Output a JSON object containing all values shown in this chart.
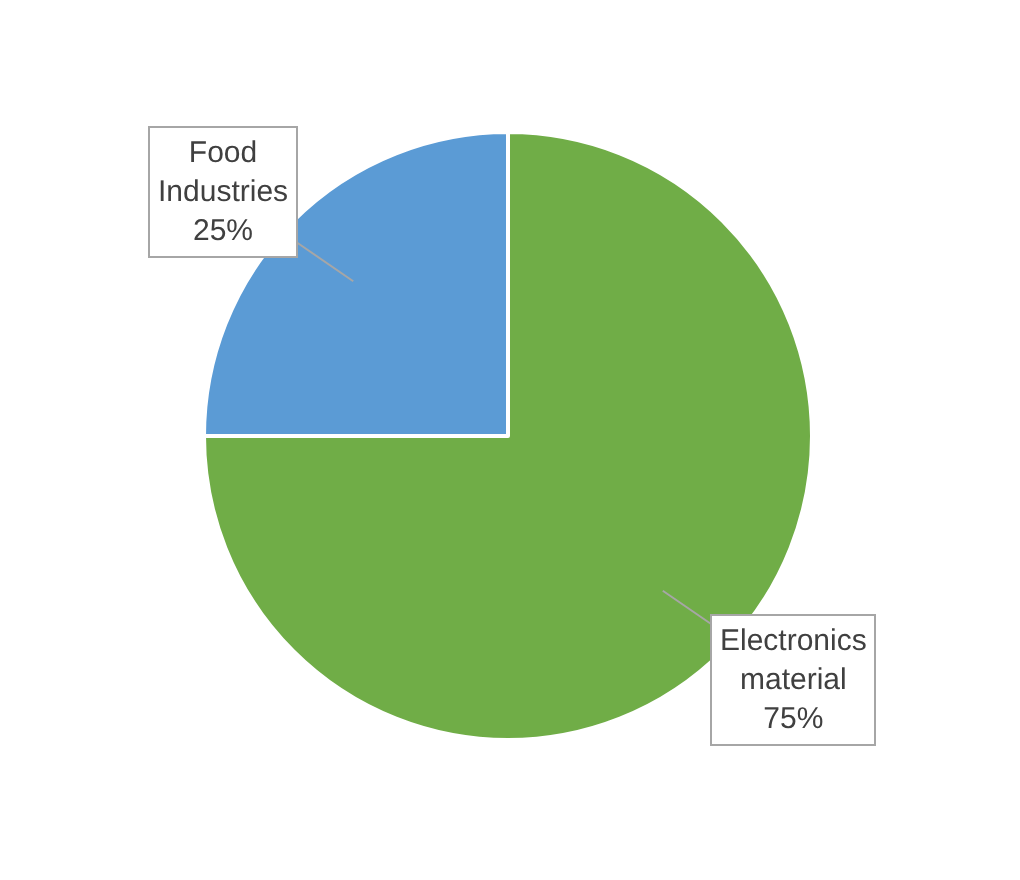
{
  "chart_data": {
    "type": "pie",
    "categories": [
      "Food Industries",
      "Electronics material"
    ],
    "values": [
      25,
      75
    ],
    "colors": [
      "#5b9bd5",
      "#70ad47"
    ],
    "value_labels": [
      "25%",
      "75%"
    ],
    "legend": false
  }
}
